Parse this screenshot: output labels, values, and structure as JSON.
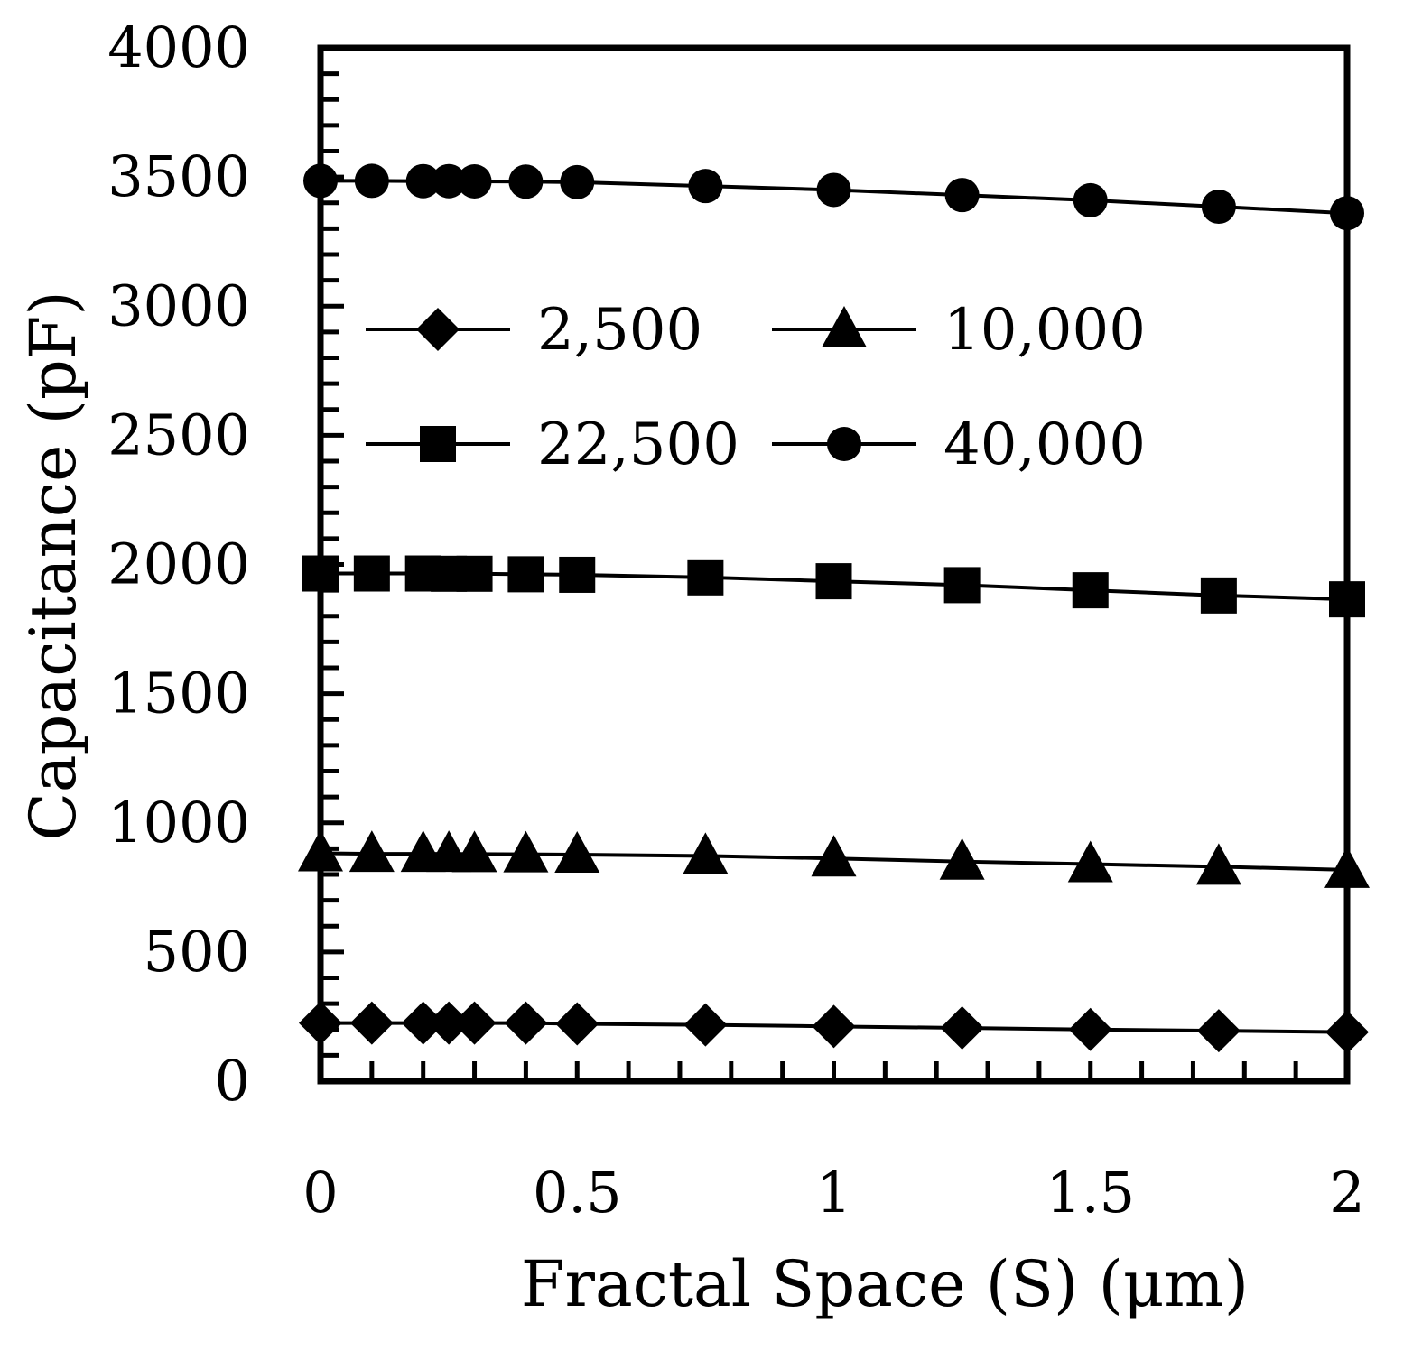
{
  "chart_data": {
    "type": "line",
    "title": "",
    "xlabel": "Fractal Space (S) (μm)",
    "ylabel": "Capacitance (pF)",
    "xlim": [
      0,
      2
    ],
    "ylim": [
      0,
      4000
    ],
    "x_ticks": [
      "0",
      "0.5",
      "1",
      "1.5",
      "2"
    ],
    "y_ticks": [
      "0",
      "500",
      "1000",
      "1500",
      "2000",
      "2500",
      "3000",
      "3500",
      "4000"
    ],
    "grid": false,
    "legend_position": "upper-middle, two columns",
    "x": [
      0,
      0.1,
      0.2,
      0.25,
      0.3,
      0.4,
      0.5,
      0.75,
      1,
      1.25,
      1.5,
      1.75,
      2
    ],
    "series": [
      {
        "name": "2,500",
        "marker": "diamond",
        "color": "#000000",
        "values": [
          225,
          225,
          225,
          225,
          225,
          225,
          222,
          218,
          212,
          206,
          200,
          195,
          190
        ]
      },
      {
        "name": "10,000",
        "marker": "triangle",
        "color": "#000000",
        "values": [
          882,
          880,
          880,
          880,
          879,
          878,
          877,
          872,
          862,
          850,
          840,
          830,
          818
        ]
      },
      {
        "name": "22,500",
        "marker": "square",
        "color": "#000000",
        "values": [
          1965,
          1965,
          1965,
          1964,
          1964,
          1962,
          1960,
          1950,
          1935,
          1920,
          1900,
          1880,
          1865
        ]
      },
      {
        "name": "40,000",
        "marker": "circle",
        "color": "#000000",
        "values": [
          3485,
          3485,
          3484,
          3484,
          3483,
          3482,
          3480,
          3465,
          3450,
          3430,
          3410,
          3385,
          3360
        ]
      }
    ]
  }
}
